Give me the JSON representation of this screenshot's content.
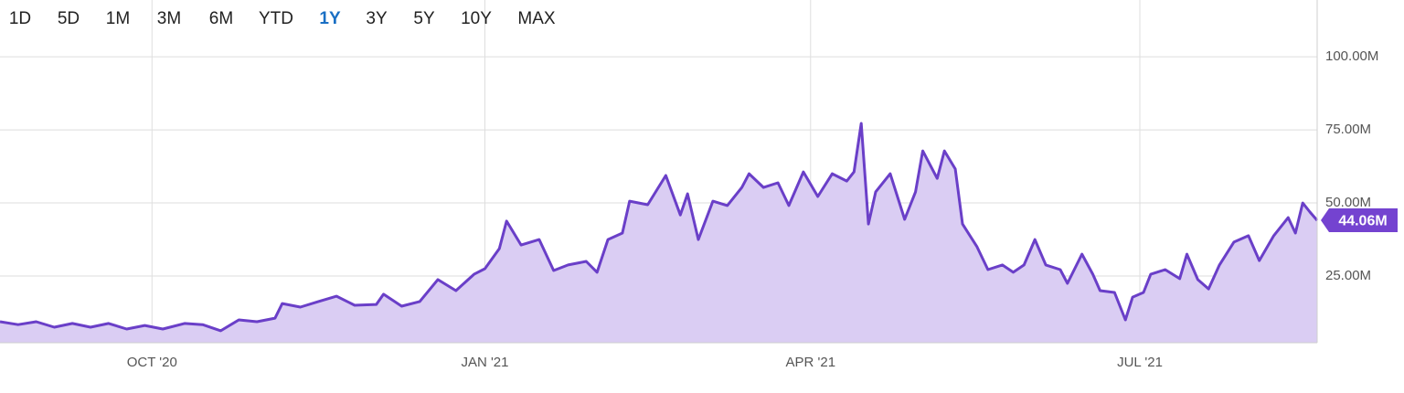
{
  "range_buttons": {
    "labels": [
      "1D",
      "5D",
      "1M",
      "3M",
      "6M",
      "YTD",
      "1Y",
      "3Y",
      "5Y",
      "10Y",
      "MAX"
    ],
    "selected": 6,
    "color": "#222222",
    "selected_color": "#1a6fc4"
  },
  "chart_data": {
    "type": "area",
    "x": [
      0,
      5,
      10,
      15,
      20,
      25,
      30,
      35,
      40,
      45,
      51,
      56,
      61,
      66,
      71,
      76,
      78,
      83,
      88,
      93,
      98,
      104,
      106,
      111,
      116,
      121,
      126,
      131,
      134,
      138,
      140,
      144,
      149,
      153,
      157,
      162,
      165,
      168,
      172,
      174,
      179,
      184,
      188,
      190,
      193,
      197,
      201,
      205,
      207,
      211,
      215,
      218,
      222,
      226,
      230,
      234,
      236,
      238,
      240,
      242,
      246,
      250,
      253,
      255,
      259,
      261,
      264,
      266,
      270,
      273,
      277,
      280,
      283,
      286,
      289,
      293,
      295,
      299,
      302,
      304,
      308,
      311,
      313,
      316,
      318,
      322,
      326,
      328,
      331,
      334,
      337,
      341,
      345,
      348,
      352,
      356,
      358,
      360,
      362,
      364
    ],
    "values": [
      9.4,
      8.4,
      9.4,
      7.5,
      8.8,
      7.5,
      8.8,
      6.9,
      8.1,
      6.9,
      8.8,
      8.4,
      6.3,
      10.0,
      9.4,
      10.6,
      15.6,
      14.4,
      16.3,
      18.1,
      15.0,
      15.3,
      18.8,
      14.7,
      16.3,
      23.8,
      20.0,
      25.6,
      27.5,
      34.4,
      43.8,
      35.6,
      37.5,
      26.9,
      28.8,
      30.0,
      26.3,
      37.5,
      39.7,
      50.6,
      49.4,
      59.4,
      45.9,
      53.1,
      37.5,
      50.6,
      49.1,
      55.3,
      60.0,
      55.3,
      56.9,
      49.1,
      60.6,
      52.2,
      60.0,
      57.5,
      60.6,
      77.2,
      42.8,
      53.8,
      60.0,
      44.4,
      53.8,
      67.8,
      58.4,
      67.8,
      61.6,
      42.8,
      35.0,
      27.2,
      28.8,
      26.3,
      28.8,
      37.5,
      28.8,
      27.2,
      22.5,
      32.5,
      25.6,
      20.0,
      19.4,
      10.0,
      17.8,
      19.4,
      25.6,
      27.2,
      24.1,
      32.5,
      23.8,
      20.6,
      28.8,
      36.6,
      38.8,
      30.3,
      38.8,
      45.0,
      39.7,
      50.0,
      46.9,
      44.06
    ],
    "value_labels": [
      null,
      null,
      null,
      null,
      null,
      null,
      null,
      null,
      null,
      null,
      null,
      null,
      null,
      null,
      null,
      null,
      null,
      null,
      null,
      null,
      null,
      null,
      null,
      null,
      null,
      null,
      null,
      null,
      null,
      null,
      null,
      null,
      null,
      null,
      null,
      null,
      null,
      null,
      null,
      null,
      null,
      null,
      null,
      null,
      null,
      null,
      null,
      null,
      null,
      null,
      null,
      null,
      null,
      null,
      null,
      null,
      null,
      null,
      null,
      null,
      null,
      null,
      null,
      null,
      null,
      null,
      null,
      null,
      null,
      null,
      null,
      null,
      null,
      null,
      null,
      null,
      null,
      null,
      null,
      null,
      null,
      null,
      null,
      null,
      null,
      null,
      null,
      null,
      null,
      null,
      null,
      null,
      null,
      null,
      null,
      null,
      null,
      null,
      null,
      "44.06M"
    ],
    "color": "#6a3fc8",
    "fill": "#dacdf3",
    "label_color": "#7443d0",
    "xlim": [
      0,
      364
    ],
    "xticks": [
      {
        "value": 42,
        "label": "OCT '20"
      },
      {
        "value": 134,
        "label": "JAN '21"
      },
      {
        "value": 224,
        "label": "APR '21"
      },
      {
        "value": 315,
        "label": "JUL '21"
      }
    ],
    "ylim": [
      2.2,
      119.4
    ],
    "yticks": [
      {
        "value": 25,
        "label": "25.00M"
      },
      {
        "value": 50,
        "label": "50.00M"
      },
      {
        "value": 75,
        "label": "75.00M"
      },
      {
        "value": 100,
        "label": "100.00M"
      }
    ],
    "grid": true
  }
}
